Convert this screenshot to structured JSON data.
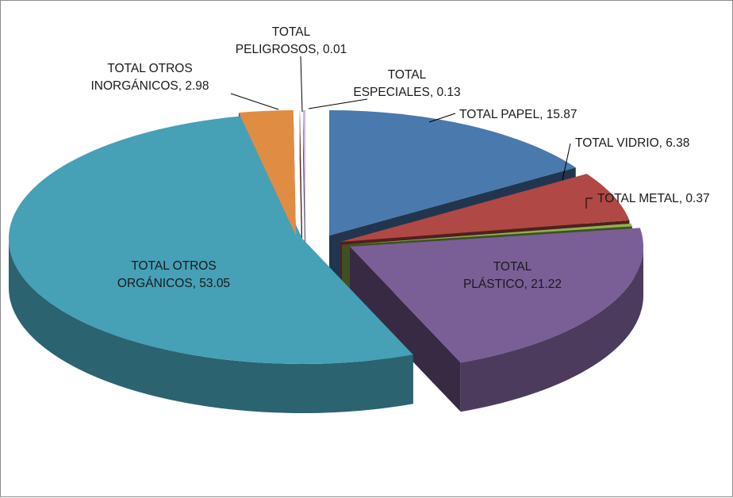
{
  "chart_data": {
    "type": "pie",
    "style": "3d-exploded",
    "legend": "none",
    "slices": [
      {
        "label": "TOTAL PAPEL",
        "value": 15.87,
        "color": "#4a79ad",
        "label_lines": [
          "TOTAL PAPEL, 15.87"
        ]
      },
      {
        "label": "TOTAL VIDRIO",
        "value": 6.38,
        "color": "#b04845",
        "label_lines": [
          "TOTAL VIDRIO, 6.38"
        ]
      },
      {
        "label": "TOTAL METAL",
        "value": 0.37,
        "color": "#8db24c",
        "label_lines": [
          "TOTAL METAL, 0.37"
        ]
      },
      {
        "label": "TOTAL PLÁSTICO",
        "value": 21.22,
        "color": "#7a5f96",
        "label_lines": [
          "TOTAL",
          "PLÁSTICO, 21.22"
        ]
      },
      {
        "label": "TOTAL OTROS ORGÁNICOS",
        "value": 53.05,
        "color": "#46a0b6",
        "label_lines": [
          "TOTAL OTROS",
          "ORGÁNICOS, 53.05"
        ]
      },
      {
        "label": "TOTAL OTROS INORGÁNICOS",
        "value": 2.98,
        "color": "#e08c43",
        "label_lines": [
          "TOTAL OTROS",
          "INORGÁNICOS, 2.98"
        ]
      },
      {
        "label": "TOTAL PELIGROSOS",
        "value": 0.01,
        "color": "#c0504d",
        "label_lines": [
          "TOTAL",
          "PELIGROSOS, 0.01"
        ]
      },
      {
        "label": "TOTAL ESPECIALES",
        "value": 0.13,
        "color": "#c9b8d8",
        "label_lines": [
          "TOTAL",
          "ESPECIALES, 0.13"
        ]
      }
    ]
  }
}
